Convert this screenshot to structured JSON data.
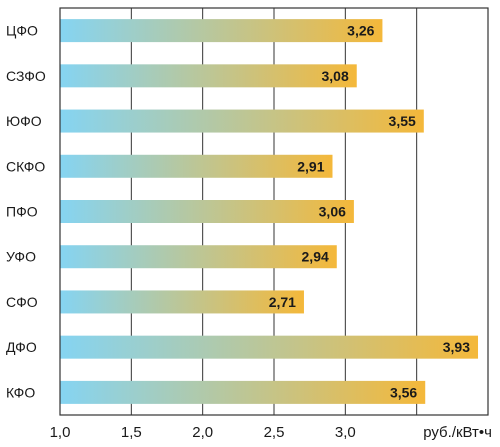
{
  "chart_data": {
    "type": "bar",
    "orientation": "horizontal",
    "categories": [
      "ЦФО",
      "СЗФО",
      "ЮФО",
      "СКФО",
      "ПФО",
      "УФО",
      "СФО",
      "ДФО",
      "КФО"
    ],
    "values": [
      3.26,
      3.08,
      3.55,
      2.91,
      3.06,
      2.94,
      2.71,
      3.93,
      3.56
    ],
    "value_labels": [
      "3,26",
      "3,08",
      "3,55",
      "2,91",
      "3,06",
      "2,94",
      "2,71",
      "3,93",
      "3,56"
    ],
    "xlim": [
      1.0,
      4.0
    ],
    "x_ticks": [
      1.0,
      1.5,
      2.0,
      2.5,
      3.0
    ],
    "x_tick_labels": [
      "1,0",
      "1,5",
      "2,0",
      "2,5",
      "3,0"
    ],
    "unit_label": "руб./кВт•ч",
    "grid": true,
    "colors": {
      "bar_start": "#85d4f2",
      "bar_end": "#f4b83a",
      "grid": "#333333"
    }
  }
}
